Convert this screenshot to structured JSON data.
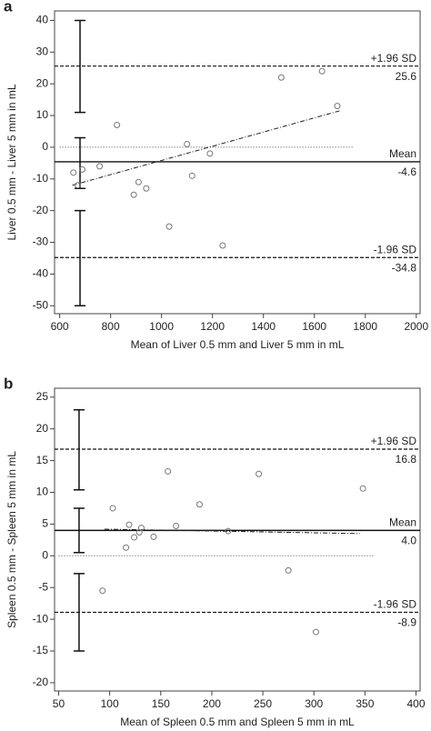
{
  "chart_data": [
    {
      "type": "scatter",
      "panel_label": "a",
      "x_label": "Mean of Liver 0.5 mm and Liver 5 mm in mL",
      "y_label": "Liver 0.5 mm - Liver 5 mm in mL",
      "xlim": [
        580,
        2015
      ],
      "ylim": [
        -52.5,
        43
      ],
      "xticks": [
        600,
        800,
        1000,
        1200,
        1400,
        1600,
        1800,
        2000
      ],
      "yticks": [
        40,
        30,
        20,
        10,
        0,
        -10,
        -20,
        -30,
        -40,
        -50
      ],
      "x": [
        654,
        671,
        689,
        757,
        825,
        891,
        910,
        940,
        1030,
        1100,
        1120,
        1190,
        1240,
        1470,
        1630,
        1690
      ],
      "values": [
        -8,
        -12,
        -7,
        -6,
        7,
        -15,
        -11,
        -13,
        -25,
        1,
        -9,
        -2,
        -31,
        22,
        24,
        13
      ],
      "marker_color": "#777777",
      "reference_lines": [
        {
          "label": "+1.96 SD",
          "value": 25.6,
          "style": "dashed"
        },
        {
          "label": "Mean",
          "value": -4.6,
          "style": "solid"
        },
        {
          "label": "-1.96 SD",
          "value": -34.8,
          "style": "dashed"
        }
      ],
      "zero_line_x": [
        600,
        1750
      ],
      "regression": {
        "x": [
          650,
          1700
        ],
        "y": [
          -12,
          11.5
        ]
      },
      "ci_bars": {
        "x": 680,
        "ranges": [
          [
            11,
            40
          ],
          [
            -13,
            3
          ],
          [
            -50,
            -20
          ]
        ]
      }
    },
    {
      "type": "scatter",
      "panel_label": "b",
      "x_label": "Mean of Spleen 0.5 mm and Spleen 5 mm in mL",
      "y_label": "Spleen 0.5 mm - Spleen 5 mm in mL",
      "xlim": [
        46,
        404
      ],
      "ylim": [
        -21.3,
        26.4
      ],
      "xticks": [
        50,
        100,
        150,
        200,
        250,
        300,
        350,
        400
      ],
      "yticks": [
        25,
        20,
        15,
        10,
        5,
        0,
        -5,
        -10,
        -15,
        -20
      ],
      "x": [
        93,
        103,
        116,
        119,
        124,
        129,
        131,
        143,
        157,
        165,
        188,
        216,
        246,
        275,
        302,
        348
      ],
      "values": [
        -5.5,
        7.5,
        1.3,
        4.9,
        2.9,
        3.7,
        4.4,
        3,
        13.3,
        4.7,
        8.1,
        3.9,
        12.9,
        -2.3,
        -12,
        10.6
      ],
      "marker_color": "#777777",
      "reference_lines": [
        {
          "label": "+1.96 SD",
          "value": 16.8,
          "style": "dashed"
        },
        {
          "label": "Mean",
          "value": 4.0,
          "value_label": "4.0",
          "style": "solid"
        },
        {
          "label": "-1.96 SD",
          "value": -8.9,
          "style": "dashed"
        }
      ],
      "zero_line_x": [
        50,
        360
      ],
      "regression": {
        "x": [
          95,
          345
        ],
        "y": [
          4.2,
          3.5
        ]
      },
      "ci_bars": {
        "x": 70,
        "ranges": [
          [
            10.4,
            23
          ],
          [
            0.5,
            7.5
          ],
          [
            -15,
            -2.8
          ]
        ]
      }
    }
  ]
}
